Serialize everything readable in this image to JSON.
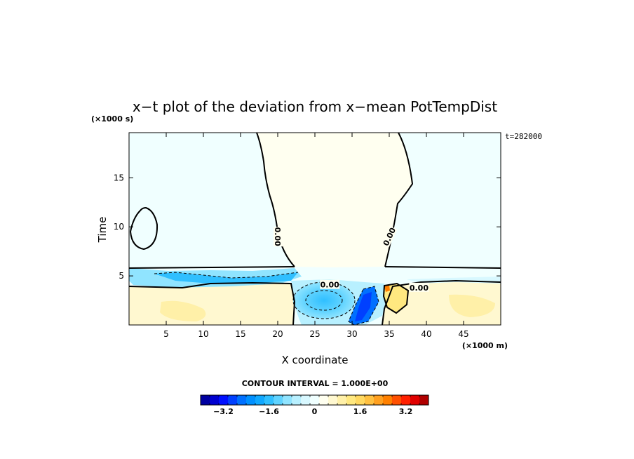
{
  "chart_data": {
    "type": "heatmap",
    "title": "x−t plot of the deviation from x−mean PotTempDist",
    "xlabel": "X coordinate",
    "ylabel": "Time",
    "x_unit": "(×1000 m)",
    "y_unit": "(×1000 s)",
    "timestamp": "t=282000",
    "xlim": [
      0,
      50
    ],
    "ylim": [
      0,
      19.6
    ],
    "x_ticks": [
      5,
      10,
      15,
      20,
      25,
      30,
      35,
      40,
      45
    ],
    "y_ticks": [
      5,
      10,
      15
    ],
    "contour_labels": [
      {
        "text": "0.00",
        "x": 20,
        "y": 9.0,
        "rotation": 90
      },
      {
        "text": "0.00",
        "x": 35,
        "y": 9.0,
        "rotation": -65
      },
      {
        "text": "0.00",
        "x": 27,
        "y": 4.1,
        "rotation": 0
      },
      {
        "text": "0.00",
        "x": 39,
        "y": 3.8,
        "rotation": 0
      }
    ],
    "contour_interval_text": "CONTOUR INTERVAL = 1.000E+00",
    "colorbar": {
      "range": [
        -4.0,
        4.0
      ],
      "tick_labels": [
        "−3.2",
        "−1.6",
        "0",
        "1.6",
        "3.2"
      ],
      "tick_values": [
        -3.2,
        -1.6,
        0,
        1.6,
        3.2
      ],
      "colors": [
        "#0000a0",
        "#0000d0",
        "#0010ff",
        "#0040ff",
        "#0070ff",
        "#0090ff",
        "#10a8ff",
        "#30bfff",
        "#60d3ff",
        "#90e4ff",
        "#b8f0ff",
        "#d8f8ff",
        "#f0ffff",
        "#fffff0",
        "#fff8d0",
        "#fff0a8",
        "#ffe880",
        "#ffd860",
        "#ffc040",
        "#ffa020",
        "#ff8000",
        "#ff5000",
        "#ff2000",
        "#e00000",
        "#b00000"
      ]
    }
  }
}
